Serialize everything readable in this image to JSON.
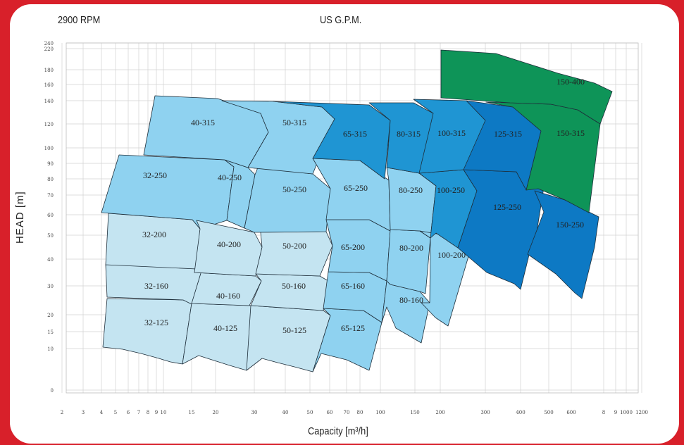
{
  "header": {
    "speed": "2900 RPM",
    "top_unit": "US G.P.M."
  },
  "axes": {
    "x_label": "Capacity  [m³/h]",
    "y_label": "HEAD [m]"
  },
  "colors": {
    "frame": "#d8202a",
    "zone_lightest": "#c4e4f1",
    "zone_light": "#8fd2f0",
    "zone_mid": "#1f95d3",
    "zone_dark": "#0d79c4",
    "zone_green": "#0e9458"
  },
  "chart_data": {
    "type": "area",
    "title": "2900 RPM",
    "xlabel": "Capacity  [m³/h]",
    "ylabel": "HEAD [m]",
    "x_scale": "log",
    "y_scale": "log",
    "xlim": [
      2,
      1200
    ],
    "ylim": [
      0,
      240
    ],
    "grid": true,
    "x_ticks": [
      "2",
      "3",
      "4",
      "5",
      "6",
      "7",
      "8",
      "9",
      "10",
      "15",
      "20",
      "30",
      "40",
      "50",
      "60",
      "70",
      "80",
      "100",
      "150",
      "200",
      "300",
      "400",
      "500",
      "600",
      "8",
      "9",
      "1000",
      "1200"
    ],
    "y_ticks": [
      "240",
      "220",
      "180",
      "160",
      "140",
      "120",
      "100",
      "90",
      "80",
      "70",
      "60",
      "50",
      "40",
      "30",
      "20",
      "15",
      "10",
      "0"
    ],
    "series": [
      {
        "name": "32-125",
        "x_range": [
          4,
          17
        ],
        "head_range": [
          8,
          26
        ]
      },
      {
        "name": "32-160",
        "x_range": [
          4,
          16
        ],
        "head_range": [
          19,
          39
        ]
      },
      {
        "name": "32-200",
        "x_range": [
          4,
          16
        ],
        "head_range": [
          30,
          60
        ]
      },
      {
        "name": "32-250",
        "x_range": [
          4,
          20
        ],
        "head_range": [
          55,
          96
        ]
      },
      {
        "name": "40-125",
        "x_range": [
          13,
          31
        ],
        "head_range": [
          8,
          22
        ]
      },
      {
        "name": "40-160",
        "x_range": [
          13,
          32
        ],
        "head_range": [
          18,
          38
        ]
      },
      {
        "name": "40-200",
        "x_range": [
          13,
          30
        ],
        "head_range": [
          30,
          55
        ]
      },
      {
        "name": "40-250",
        "x_range": [
          17,
          33
        ],
        "head_range": [
          48,
          92
        ]
      },
      {
        "name": "40-315",
        "x_range": [
          8,
          37
        ],
        "head_range": [
          95,
          150
        ]
      },
      {
        "name": "50-125",
        "x_range": [
          28,
          60
        ],
        "head_range": [
          6,
          22
        ]
      },
      {
        "name": "50-160",
        "x_range": [
          28,
          60
        ],
        "head_range": [
          17,
          39
        ]
      },
      {
        "name": "50-200",
        "x_range": [
          28,
          60
        ],
        "head_range": [
          30,
          55
        ]
      },
      {
        "name": "50-250",
        "x_range": [
          28,
          55
        ],
        "head_range": [
          53,
          90
        ]
      },
      {
        "name": "50-315",
        "x_range": [
          37,
          60
        ],
        "head_range": [
          95,
          145
        ]
      },
      {
        "name": "65-125",
        "x_range": [
          55,
          105
        ],
        "head_range": [
          6,
          21
        ]
      },
      {
        "name": "65-160",
        "x_range": [
          55,
          100
        ],
        "head_range": [
          17,
          32
        ]
      },
      {
        "name": "65-200",
        "x_range": [
          55,
          100
        ],
        "head_range": [
          30,
          55
        ]
      },
      {
        "name": "65-250",
        "x_range": [
          45,
          100
        ],
        "head_range": [
          55,
          95
        ]
      },
      {
        "name": "65-315",
        "x_range": [
          55,
          100
        ],
        "head_range": [
          82,
          144
        ]
      },
      {
        "name": "80-160",
        "x_range": [
          100,
          150
        ],
        "head_range": [
          17,
          30
        ]
      },
      {
        "name": "80-200",
        "x_range": [
          100,
          150
        ],
        "head_range": [
          28,
          50
        ]
      },
      {
        "name": "80-250",
        "x_range": [
          100,
          150
        ],
        "head_range": [
          50,
          85
        ]
      },
      {
        "name": "80-315",
        "x_range": [
          100,
          150
        ],
        "head_range": [
          80,
          143
        ]
      },
      {
        "name": "100-200",
        "x_range": [
          150,
          250
        ],
        "head_range": [
          18,
          50
        ]
      },
      {
        "name": "100-250",
        "x_range": [
          150,
          250
        ],
        "head_range": [
          45,
          85
        ]
      },
      {
        "name": "100-315",
        "x_range": [
          150,
          250
        ],
        "head_range": [
          80,
          143
        ]
      },
      {
        "name": "125-250",
        "x_range": [
          250,
          420
        ],
        "head_range": [
          27,
          85
        ]
      },
      {
        "name": "125-315",
        "x_range": [
          250,
          420
        ],
        "head_range": [
          70,
          143
        ]
      },
      {
        "name": "150-250",
        "x_range": [
          420,
          720
        ],
        "head_range": [
          25,
          60
        ]
      },
      {
        "name": "150-315",
        "x_range": [
          420,
          720
        ],
        "head_range": [
          60,
          140
        ]
      },
      {
        "name": "150-400",
        "x_range": [
          200,
          800
        ],
        "head_range": [
          135,
          225
        ]
      }
    ]
  },
  "zones": [
    {
      "name": "32-125",
      "shade": "lightest"
    },
    {
      "name": "32-160",
      "shade": "lightest"
    },
    {
      "name": "32-200",
      "shade": "lightest"
    },
    {
      "name": "32-250",
      "shade": "light"
    },
    {
      "name": "40-125",
      "shade": "lightest"
    },
    {
      "name": "40-160",
      "shade": "lightest"
    },
    {
      "name": "40-200",
      "shade": "lightest"
    },
    {
      "name": "40-250",
      "shade": "light"
    },
    {
      "name": "40-315",
      "shade": "light"
    },
    {
      "name": "50-125",
      "shade": "lightest"
    },
    {
      "name": "50-160",
      "shade": "lightest"
    },
    {
      "name": "50-200",
      "shade": "lightest"
    },
    {
      "name": "50-250",
      "shade": "light"
    },
    {
      "name": "50-315",
      "shade": "light"
    },
    {
      "name": "65-125",
      "shade": "light"
    },
    {
      "name": "65-160",
      "shade": "light"
    },
    {
      "name": "65-200",
      "shade": "light"
    },
    {
      "name": "65-250",
      "shade": "light"
    },
    {
      "name": "65-315",
      "shade": "mid"
    },
    {
      "name": "80-160",
      "shade": "light"
    },
    {
      "name": "80-200",
      "shade": "light"
    },
    {
      "name": "80-250",
      "shade": "light"
    },
    {
      "name": "80-315",
      "shade": "mid"
    },
    {
      "name": "100-200",
      "shade": "light"
    },
    {
      "name": "100-250",
      "shade": "mid"
    },
    {
      "name": "100-315",
      "shade": "mid"
    },
    {
      "name": "125-250",
      "shade": "dark"
    },
    {
      "name": "125-315",
      "shade": "dark"
    },
    {
      "name": "150-250",
      "shade": "dark"
    },
    {
      "name": "150-315",
      "shade": "green"
    },
    {
      "name": "150-400",
      "shade": "green"
    }
  ]
}
